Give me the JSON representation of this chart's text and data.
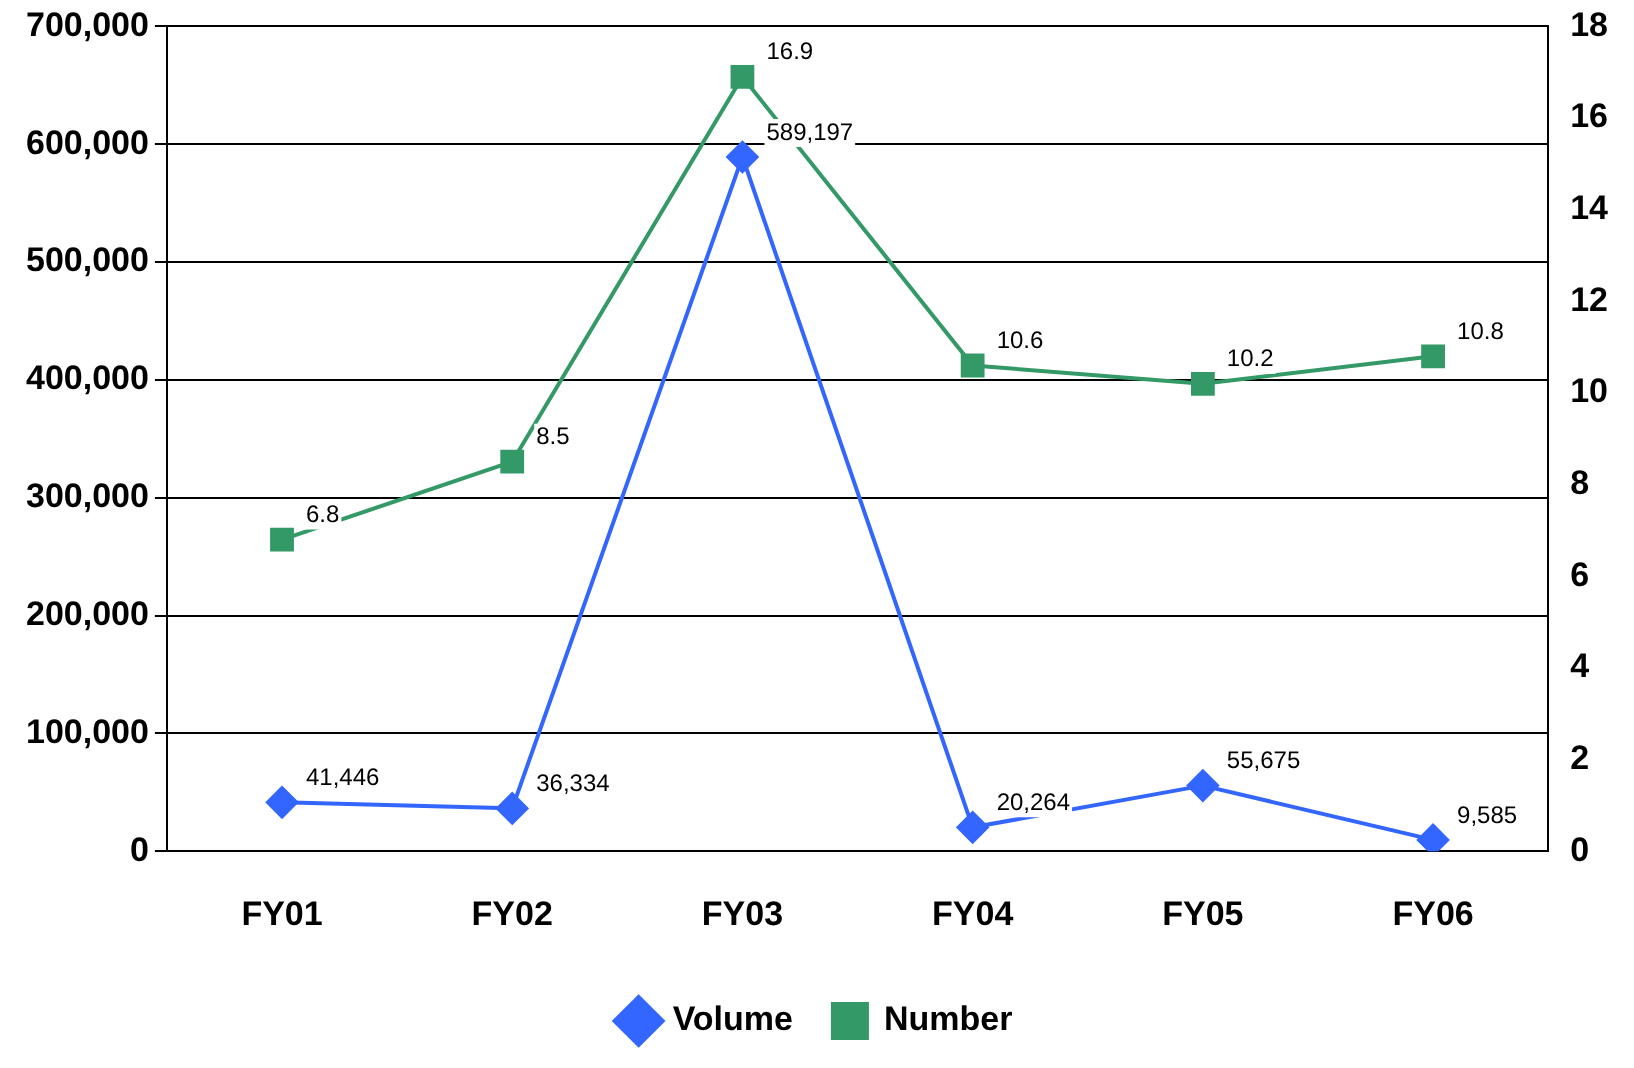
{
  "chart_data": {
    "type": "line",
    "categories": [
      "FY01",
      "FY02",
      "FY03",
      "FY04",
      "FY05",
      "FY06"
    ],
    "series": [
      {
        "name": "Volume",
        "color": "#3366ff",
        "marker": "diamond",
        "values": [
          41446,
          36334,
          589197,
          20264,
          55675,
          9585
        ],
        "value_labels": [
          "41,446",
          "36,334",
          "589,197",
          "20,264",
          "55,675",
          "9,585"
        ]
      },
      {
        "name": "Number",
        "color": "#339966",
        "marker": "square",
        "axis": "y2",
        "values": [
          6.8,
          8.5,
          16.9,
          10.6,
          10.2,
          10.8
        ],
        "value_labels": [
          "6.8",
          "8.5",
          "16.9",
          "10.6",
          "10.2",
          "10.8"
        ]
      }
    ],
    "ylim": [
      0,
      700000
    ],
    "yticks": [
      {
        "value": 0,
        "label": "0"
      },
      {
        "value": 100000,
        "label": "100,000"
      },
      {
        "value": 200000,
        "label": "200,000"
      },
      {
        "value": 300000,
        "label": "300,000"
      },
      {
        "value": 400000,
        "label": "400,000"
      },
      {
        "value": 500000,
        "label": "500,000"
      },
      {
        "value": 600000,
        "label": "600,000"
      },
      {
        "value": 700000,
        "label": "700,000"
      }
    ],
    "y2lim": [
      0,
      18
    ],
    "y2ticks": [
      0,
      2,
      4,
      6,
      8,
      10,
      12,
      14,
      16,
      18
    ],
    "grid": "y",
    "legend": "bottom"
  }
}
